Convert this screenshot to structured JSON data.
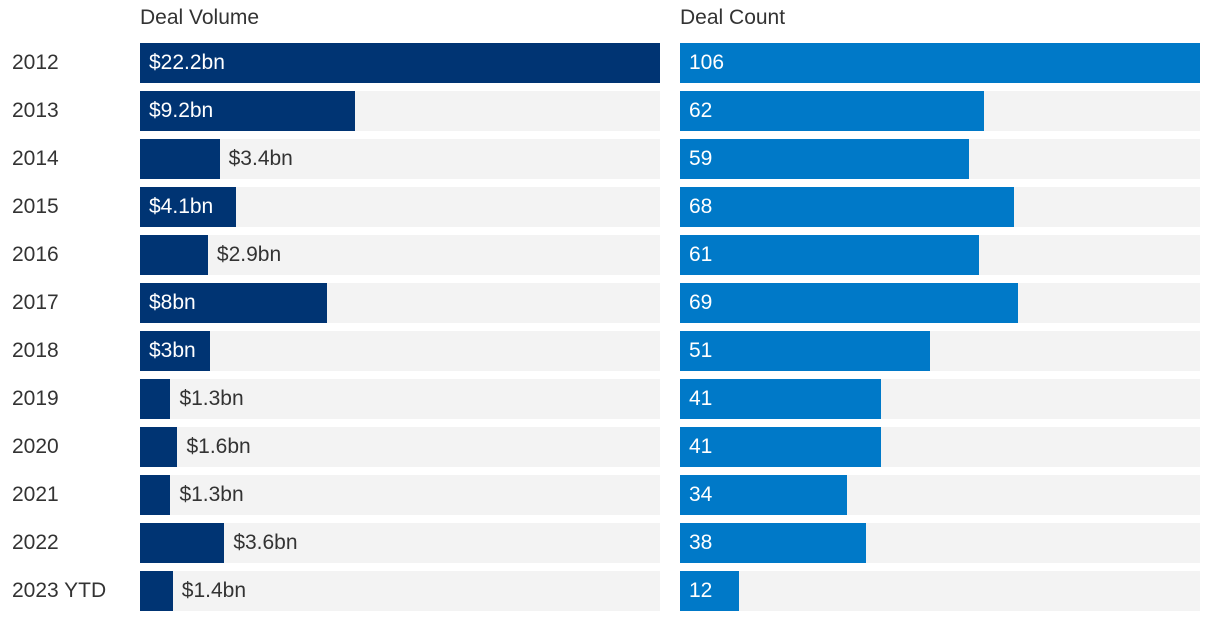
{
  "chart_data": [
    {
      "type": "bar",
      "orientation": "horizontal",
      "title": "Deal Volume",
      "unit_prefix": "$",
      "unit_suffix": "bn",
      "categories": [
        "2012",
        "2013",
        "2014",
        "2015",
        "2016",
        "2017",
        "2018",
        "2019",
        "2020",
        "2021",
        "2022",
        "2023 YTD"
      ],
      "values": [
        22.2,
        9.2,
        3.4,
        4.1,
        2.9,
        8,
        3,
        1.3,
        1.6,
        1.3,
        3.6,
        1.4
      ],
      "labels": [
        "$22.2bn",
        "$9.2bn",
        "$3.4bn",
        "$4.1bn",
        "$2.9bn",
        "$8bn",
        "$3bn",
        "$1.3bn",
        "$1.6bn",
        "$1.3bn",
        "$3.6bn",
        "$1.4bn"
      ],
      "xlim": [
        0,
        22.2
      ],
      "color": "#003473",
      "track_color": "#f3f3f3"
    },
    {
      "type": "bar",
      "orientation": "horizontal",
      "title": "Deal Count",
      "categories": [
        "2012",
        "2013",
        "2014",
        "2015",
        "2016",
        "2017",
        "2018",
        "2019",
        "2020",
        "2021",
        "2022",
        "2023 YTD"
      ],
      "values": [
        106,
        62,
        59,
        68,
        61,
        69,
        51,
        41,
        41,
        34,
        38,
        12
      ],
      "labels": [
        "106",
        "62",
        "59",
        "68",
        "61",
        "69",
        "51",
        "41",
        "41",
        "34",
        "38",
        "12"
      ],
      "xlim": [
        0,
        106
      ],
      "color": "#0079c8",
      "track_color": "#f3f3f3"
    }
  ]
}
